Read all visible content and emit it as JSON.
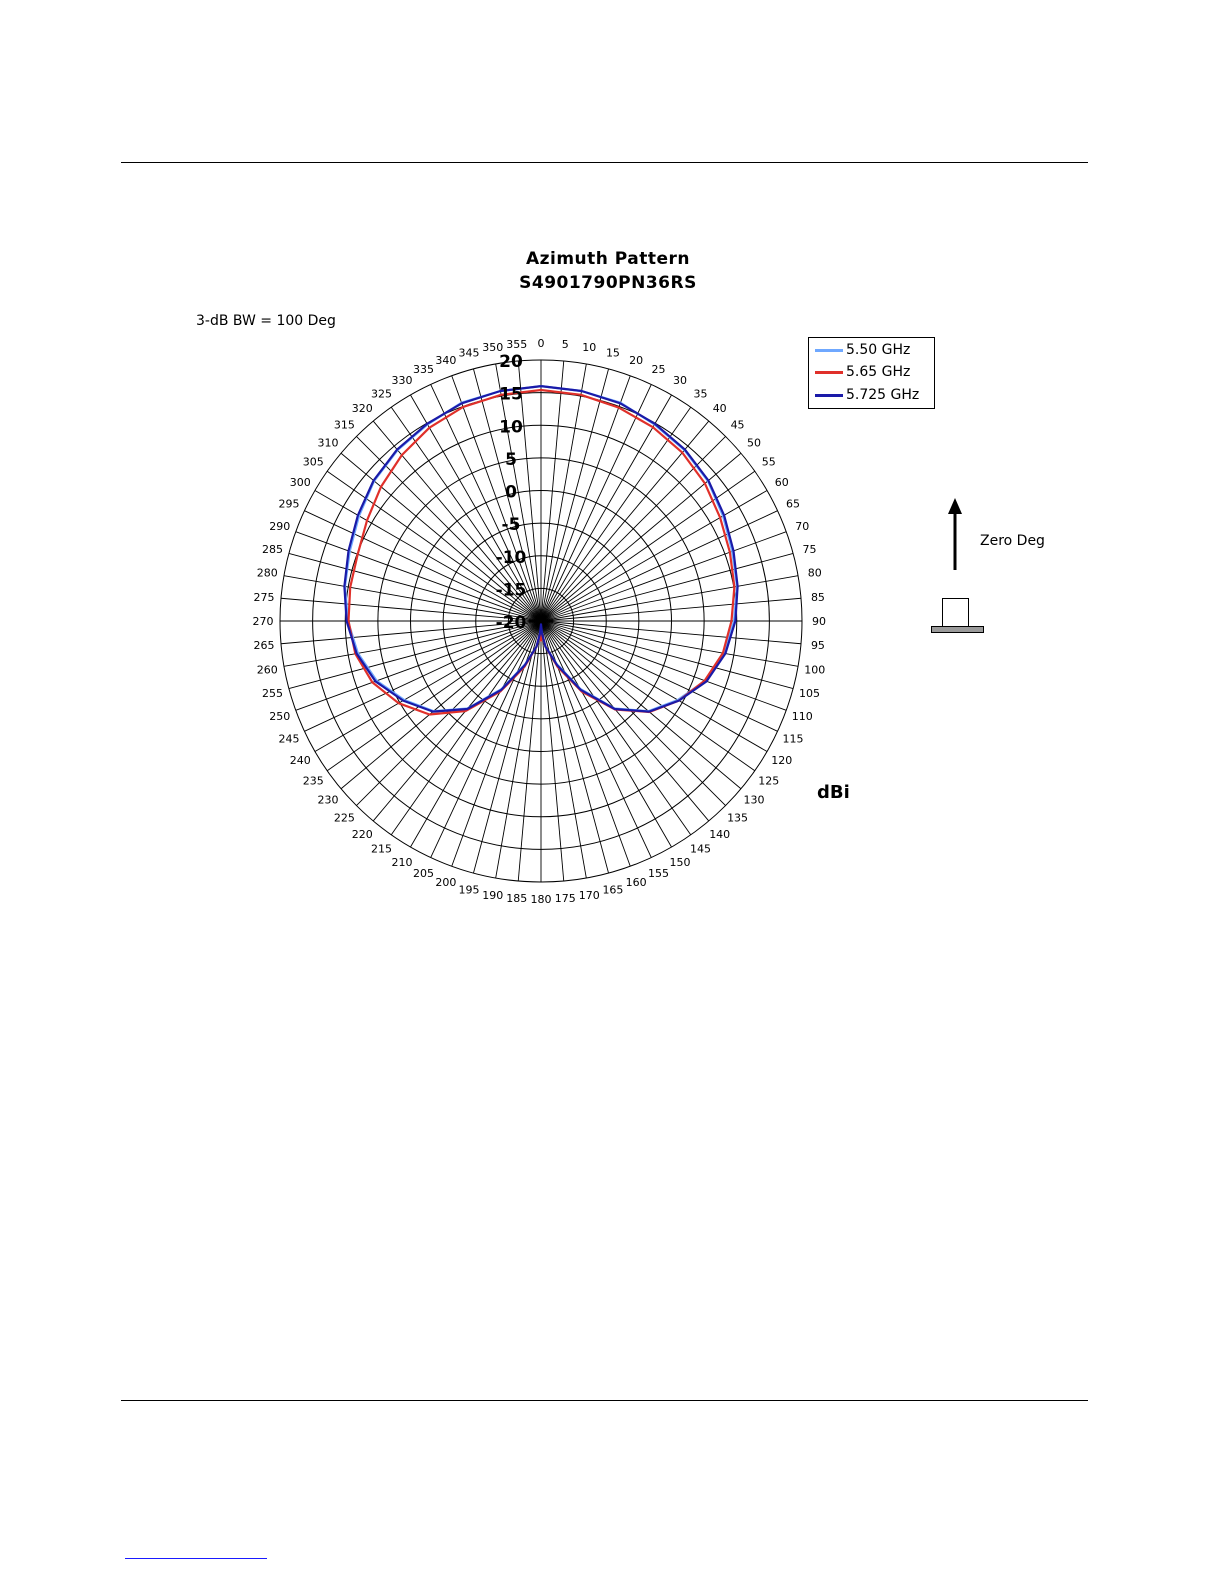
{
  "chart_data": {
    "type": "polar-line",
    "title": "Azimuth Pattern",
    "subtitle": "S4901790PN36RS",
    "note": "3-dB BW = 100 Deg",
    "unit": "dBi",
    "radial_range": [
      -20,
      20
    ],
    "radial_ticks": [
      "20",
      "15",
      "10",
      "5",
      "0",
      "-5",
      "-10",
      "-15",
      "-20"
    ],
    "angle_ticks": [
      "0",
      "5",
      "10",
      "15",
      "20",
      "25",
      "30",
      "35",
      "40",
      "45",
      "50",
      "55",
      "60",
      "65",
      "70",
      "75",
      "80",
      "85",
      "90",
      "95",
      "100",
      "105",
      "110",
      "115",
      "120",
      "125",
      "130",
      "135",
      "140",
      "145",
      "150",
      "155",
      "160",
      "165",
      "170",
      "175",
      "180",
      "185",
      "190",
      "195",
      "200",
      "205",
      "210",
      "215",
      "220",
      "225",
      "230",
      "235",
      "240",
      "245",
      "250",
      "255",
      "260",
      "265",
      "270",
      "275",
      "280",
      "285",
      "290",
      "295",
      "300",
      "305",
      "310",
      "315",
      "320",
      "325",
      "330",
      "335",
      "340",
      "345",
      "350",
      "355"
    ],
    "legend_position": "top-right",
    "series": [
      {
        "name": "5.50 GHz",
        "color": "#6fa8ff",
        "angles": [
          0,
          10,
          20,
          30,
          40,
          50,
          60,
          70,
          80,
          90,
          100,
          110,
          120,
          130,
          140,
          150,
          160,
          170,
          175,
          180,
          185,
          190,
          200,
          210,
          220,
          230,
          240,
          250,
          260,
          270,
          280,
          290,
          300,
          310,
          320,
          330,
          340,
          350
        ],
        "values": [
          16,
          15.8,
          15.6,
          14.8,
          14.2,
          13.4,
          12.2,
          11.2,
          10.5,
          9.6,
          8.5,
          6.8,
          4.2,
          1.5,
          -2.5,
          -8,
          -13,
          -16,
          -18,
          -19,
          -18,
          -16,
          -13,
          -8,
          -2.5,
          1.5,
          4.2,
          6.8,
          8.5,
          9.6,
          10.5,
          11.2,
          12.2,
          13.4,
          14.2,
          14.8,
          15.6,
          15.8
        ]
      },
      {
        "name": "5.65 GHz",
        "color": "#e0302a",
        "angles": [
          0,
          10,
          20,
          30,
          40,
          50,
          60,
          70,
          80,
          90,
          100,
          110,
          120,
          130,
          140,
          150,
          160,
          170,
          175,
          180,
          185,
          190,
          200,
          210,
          220,
          230,
          240,
          250,
          260,
          270,
          280,
          290,
          300,
          310,
          320,
          330,
          340,
          350
        ],
        "values": [
          15.4,
          15.2,
          14.8,
          14.3,
          13.7,
          12.8,
          11.7,
          10.8,
          10.1,
          9.2,
          8.3,
          6.7,
          4.4,
          1.7,
          -2.3,
          -7.5,
          -12.5,
          -16,
          -18,
          -17,
          -18,
          -16,
          -12.5,
          -7.5,
          -2,
          2.3,
          5.2,
          7.5,
          8.9,
          9.5,
          9.7,
          9.9,
          10.8,
          12.0,
          13.2,
          14.2,
          14.9,
          15.2
        ]
      },
      {
        "name": "5.725 GHz",
        "color": "#1a1aa8",
        "angles": [
          0,
          10,
          20,
          30,
          40,
          50,
          60,
          70,
          80,
          90,
          100,
          110,
          120,
          130,
          140,
          150,
          160,
          170,
          175,
          180,
          185,
          190,
          200,
          210,
          220,
          230,
          240,
          250,
          260,
          270,
          280,
          290,
          300,
          310,
          320,
          330,
          340,
          350
        ],
        "values": [
          16,
          15.8,
          15.5,
          14.9,
          14.3,
          13.5,
          12.4,
          11.4,
          10.6,
          9.8,
          8.7,
          7.0,
          4.4,
          1.6,
          -2.4,
          -7.8,
          -12.8,
          -16,
          -18,
          -19.5,
          -18,
          -16,
          -12.8,
          -7.8,
          -2.4,
          1.6,
          4.4,
          7.0,
          8.7,
          9.8,
          10.6,
          11.4,
          12.4,
          13.5,
          14.3,
          14.9,
          15.5,
          15.8
        ]
      }
    ]
  },
  "annotations": {
    "zero_deg_label": "Zero Deg"
  }
}
